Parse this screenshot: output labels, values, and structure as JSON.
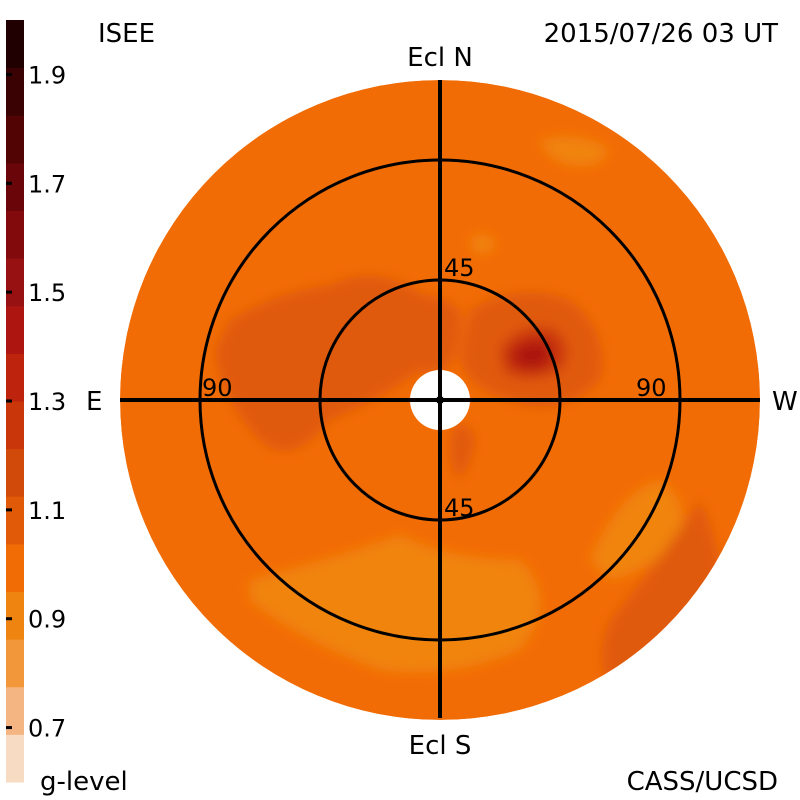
{
  "header": {
    "source": "ISEE",
    "timestamp": "2015/07/26 03 UT"
  },
  "footer": {
    "colorbar_title": "g-level",
    "credit": "CASS/UCSD"
  },
  "colorbar": {
    "ticks": [
      "1.9",
      "1.7",
      "1.5",
      "1.3",
      "1.1",
      "0.9",
      "0.7"
    ],
    "bands": [
      "#f7dcc3",
      "#f5b582",
      "#f2973a",
      "#f08410",
      "#f26c05",
      "#e05a08",
      "#d24a09",
      "#c9360a",
      "#bd230d",
      "#ac1510",
      "#971012",
      "#830a0c",
      "#6a0609",
      "#520405",
      "#3a0202",
      "#200000"
    ]
  },
  "chart_data": {
    "type": "heatmap",
    "projection": "polar sky map (elongation from Sun)",
    "variable": "g-level",
    "colorbar_range": [
      0.6,
      2.0
    ],
    "colorbar_ticks": [
      0.7,
      0.9,
      1.1,
      1.3,
      1.5,
      1.7,
      1.9
    ],
    "direction_labels": {
      "top": "Ecl N",
      "bottom": "Ecl S",
      "left": "E",
      "right": "W"
    },
    "elongation_rings": [
      45,
      90
    ],
    "ring_labels": [
      {
        "text": "45",
        "where": "north"
      },
      {
        "text": "45",
        "where": "south"
      },
      {
        "text": "90",
        "where": "east"
      },
      {
        "text": "90",
        "where": "west"
      }
    ],
    "field_range": [
      0.8,
      1.4
    ],
    "background_level": 1.0,
    "features": [
      {
        "region": "north-west near 45 deg ring",
        "level": 1.35
      },
      {
        "region": "inner ring east and north",
        "level": 1.1
      },
      {
        "region": "south, below center",
        "level": 0.85
      },
      {
        "region": "south-west edge",
        "level": 1.1
      },
      {
        "region": "north-east edge",
        "level": 0.9
      }
    ]
  }
}
